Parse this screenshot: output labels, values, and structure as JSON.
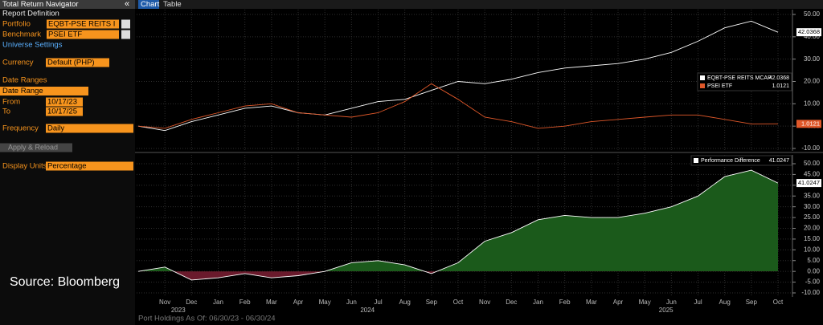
{
  "header": {
    "title": "Total Return Navigator",
    "collapse": "«"
  },
  "tabs": [
    "Chart",
    "Table"
  ],
  "sidebar": {
    "report_definition": "Report Definition",
    "portfolio": {
      "label": "Portfolio",
      "value": "EQBT-PSE REITS I"
    },
    "benchmark": {
      "label": "Benchmark",
      "value": "PSEI ETF"
    },
    "universe_settings": "Universe Settings",
    "currency": {
      "label": "Currency",
      "value": "Default (PHP)"
    },
    "date_ranges": "Date Ranges",
    "date_range": "Date Range",
    "from": {
      "label": "From",
      "value": "10/17/23"
    },
    "to": {
      "label": "To",
      "value": "10/17/25"
    },
    "frequency": {
      "label": "Frequency",
      "value": "Daily"
    },
    "apply": "Apply & Reload",
    "display_units": {
      "label": "Display Units",
      "value": "Percentage"
    }
  },
  "source": "Source: Bloomberg",
  "footer": "Port Holdings As Of: 06/30/23 - 06/30/24",
  "x_axis": {
    "months": [
      "Nov",
      "Dec",
      "Jan",
      "Feb",
      "Mar",
      "Apr",
      "May",
      "Jun",
      "Jul",
      "Aug",
      "Sep",
      "Oct",
      "Nov",
      "Dec",
      "Jan",
      "Feb",
      "Mar",
      "Apr",
      "May",
      "Jun",
      "Jul",
      "Aug",
      "Sep",
      "Oct"
    ],
    "years": [
      "2023",
      "2024",
      "2025"
    ]
  },
  "chart_data": [
    {
      "type": "line",
      "grid": true,
      "x": [
        "2023-10",
        "2023-11",
        "2023-12",
        "2024-01",
        "2024-02",
        "2024-03",
        "2024-04",
        "2024-05",
        "2024-06",
        "2024-07",
        "2024-08",
        "2024-09",
        "2024-10",
        "2024-11",
        "2024-12",
        "2025-01",
        "2025-02",
        "2025-03",
        "2025-04",
        "2025-05",
        "2025-06",
        "2025-07",
        "2025-08",
        "2025-09",
        "2025-10"
      ],
      "ylim": [
        -10,
        50
      ],
      "yticks": [
        {
          "value": 50,
          "label": "50.00"
        },
        {
          "value": 40,
          "label": "40.00"
        },
        {
          "value": 30,
          "label": "30.00"
        },
        {
          "value": 20,
          "label": "20.00"
        },
        {
          "value": 10,
          "label": "10.00"
        },
        {
          "value": 0,
          "label": "0.00"
        },
        {
          "value": -10,
          "label": "-10.00"
        }
      ],
      "series": [
        {
          "name": "EQBT-PSE REITS MCAP",
          "color": "#ffffff",
          "values": [
            0,
            -2,
            2,
            5,
            8,
            9,
            6,
            5,
            8,
            11,
            12,
            16,
            20,
            19,
            21,
            24,
            26,
            27,
            28,
            30,
            33,
            38,
            44,
            47,
            42.0368
          ]
        },
        {
          "name": "PSEI ETF",
          "color": "#e0582a",
          "values": [
            0,
            -1,
            3,
            6,
            9,
            10,
            6,
            5,
            4,
            6,
            11,
            19,
            12,
            4,
            2,
            -1,
            0,
            2,
            3,
            4,
            5,
            5,
            3,
            1,
            1.0121
          ]
        }
      ]
    },
    {
      "type": "area",
      "grid": true,
      "x": [
        "2023-10",
        "2023-11",
        "2023-12",
        "2024-01",
        "2024-02",
        "2024-03",
        "2024-04",
        "2024-05",
        "2024-06",
        "2024-07",
        "2024-08",
        "2024-09",
        "2024-10",
        "2024-11",
        "2024-12",
        "2025-01",
        "2025-02",
        "2025-03",
        "2025-04",
        "2025-05",
        "2025-06",
        "2025-07",
        "2025-08",
        "2025-09",
        "2025-10"
      ],
      "ylim": [
        -10,
        50
      ],
      "yticks": [
        {
          "value": 50,
          "label": "50.00"
        },
        {
          "value": 45,
          "label": "45.00"
        },
        {
          "value": 40,
          "label": "40.00"
        },
        {
          "value": 35,
          "label": "35.00"
        },
        {
          "value": 30,
          "label": "30.00"
        },
        {
          "value": 25,
          "label": "25.00"
        },
        {
          "value": 20,
          "label": "20.00"
        },
        {
          "value": 15,
          "label": "15.00"
        },
        {
          "value": 10,
          "label": "10.00"
        },
        {
          "value": 5,
          "label": "5.00"
        },
        {
          "value": 0,
          "label": "0.00"
        },
        {
          "value": -5,
          "label": "-5.00"
        },
        {
          "value": -10,
          "label": "-10.00"
        }
      ],
      "series": [
        {
          "name": "Performance Difference",
          "color": "#ffffff",
          "fill_positive": "#1b5a1b",
          "fill_negative": "#6a1a2c",
          "values": [
            0,
            2,
            -4,
            -3,
            -1,
            -3,
            -2,
            0,
            4,
            5,
            3,
            -1,
            4,
            14,
            18,
            24,
            26,
            25,
            25,
            27,
            30,
            35,
            44,
            47,
            41.0247
          ]
        }
      ]
    }
  ]
}
